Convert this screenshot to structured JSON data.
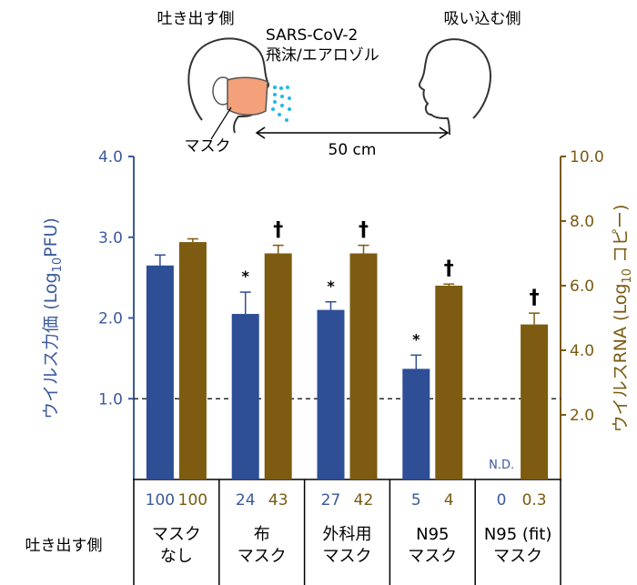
{
  "illustration": {
    "emitter_label": "吐き出す側",
    "receiver_label": "吸い込む側",
    "virus_line1": "SARS-CoV-2",
    "virus_line2": "飛沫/エアロゾル",
    "mask_label": "マスク",
    "distance_label": "50 cm"
  },
  "chart_data": {
    "type": "bar",
    "categories": [
      "マスク なし",
      "布 マスク",
      "外科用 マスク",
      "N95 マスク",
      "N95 (fit) マスク"
    ],
    "category_lines": [
      [
        "マスク",
        "なし"
      ],
      [
        "布",
        "マスク"
      ],
      [
        "外科用",
        "マスク"
      ],
      [
        "N95",
        "マスク"
      ],
      [
        "N95 (fit)",
        "マスク"
      ]
    ],
    "row_label": "吐き出す側",
    "y_left": {
      "label_pre": "ウイルス力価 (Log",
      "label_sub": "10",
      "label_post": "PFU)",
      "ylim": [
        0,
        4
      ],
      "ticks": [
        "1.0",
        "2.0",
        "3.0",
        "4.0"
      ],
      "color": "#3a5a9c"
    },
    "y_right": {
      "label_pre": "ウイルスRNA (Log",
      "label_sub": "10",
      "label_post": " コピー)",
      "ylim": [
        0,
        10
      ],
      "ticks": [
        "2.0",
        "4.0",
        "6.0",
        "8.0",
        "10.0"
      ],
      "color": "#7a5a10"
    },
    "series": [
      {
        "axis": "left",
        "color": "#2e4e96",
        "values": [
          2.65,
          2.05,
          2.1,
          1.37,
          null
        ],
        "errors": [
          0.13,
          0.27,
          0.1,
          0.17,
          null
        ],
        "markers": [
          "",
          "*",
          "*",
          "*",
          ""
        ]
      },
      {
        "axis": "right",
        "color": "#7d5c12",
        "values": [
          7.35,
          7.0,
          7.0,
          6.0,
          4.8
        ],
        "errors": [
          0.1,
          0.25,
          0.25,
          0.05,
          0.35
        ],
        "markers": [
          "",
          "†",
          "†",
          "†",
          "†"
        ]
      }
    ],
    "percent_left": [
      "100",
      "24",
      "27",
      "5",
      "0"
    ],
    "percent_right": [
      "100",
      "43",
      "42",
      "4",
      "0.3"
    ],
    "not_detected": "N.D.",
    "reference_line": 1.0
  }
}
